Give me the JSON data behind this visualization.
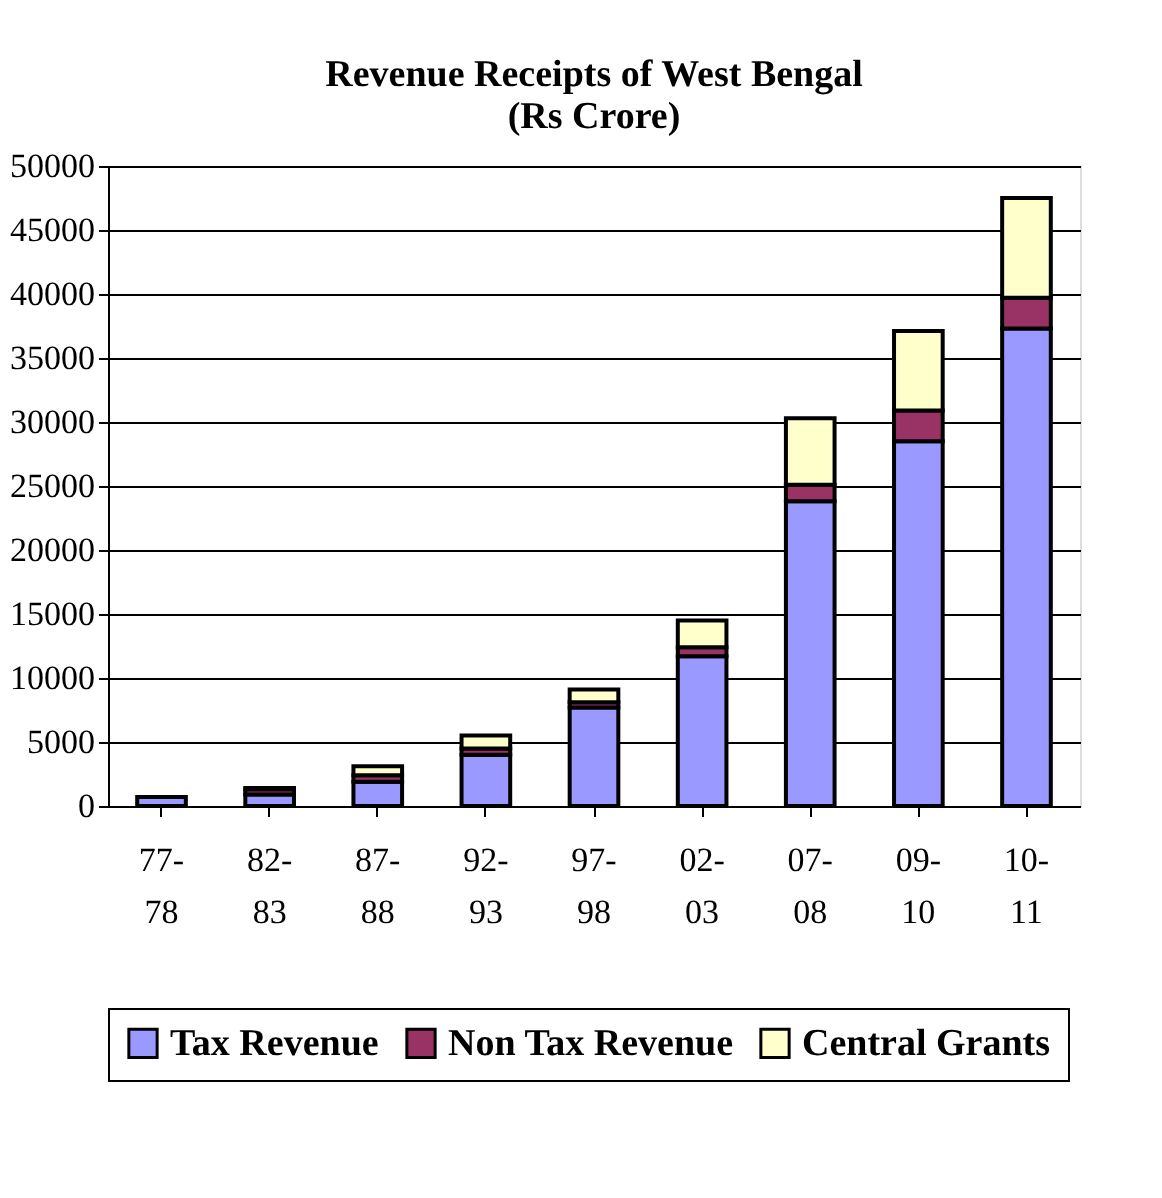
{
  "chart_data": {
    "type": "bar",
    "title": [
      "Revenue Receipts of West Bengal",
      "(Rs Crore)"
    ],
    "stacked": true,
    "categories": [
      "77-78",
      "82-83",
      "87-88",
      "92-93",
      "97-98",
      "02-03",
      "07-08",
      "09-10",
      "10-11"
    ],
    "series": [
      {
        "name": "Tax Revenue",
        "color": "#9999ff",
        "values": [
          700,
          900,
          1900,
          4000,
          7700,
          11700,
          23800,
          28500,
          37300
        ]
      },
      {
        "name": "Non Tax Revenue",
        "color": "#993366",
        "values": [
          null,
          400,
          500,
          500,
          400,
          700,
          1300,
          2400,
          2400
        ]
      },
      {
        "name": "Central Grants",
        "color": "#ffffcc",
        "values": [
          null,
          100,
          700,
          1000,
          1000,
          2100,
          5200,
          6200,
          7800
        ]
      }
    ],
    "ylim": [
      0,
      50000
    ],
    "yticks": [
      0,
      5000,
      10000,
      15000,
      20000,
      25000,
      30000,
      35000,
      40000,
      45000,
      50000
    ],
    "grid": "y",
    "legend": "bottom"
  }
}
